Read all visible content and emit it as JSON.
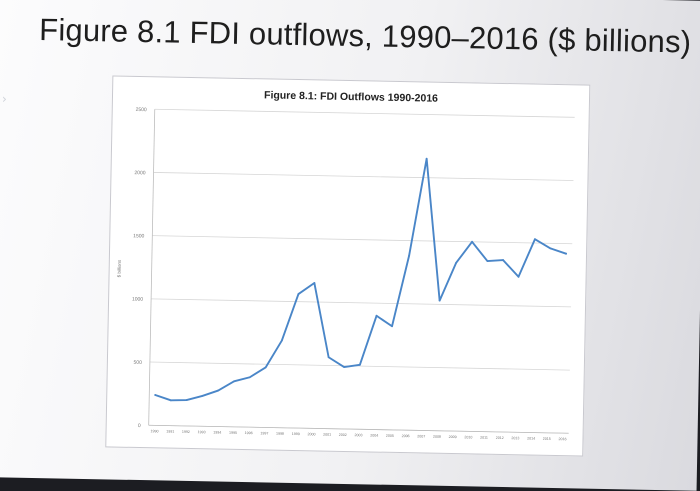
{
  "slide": {
    "title": "Figure 8.1 FDI outflows, 1990–2016 ($ billions)"
  },
  "chart_data": {
    "type": "line",
    "title": "Figure 8.1: FDI Outflows 1990-2016",
    "xlabel": "",
    "ylabel": "$ billions",
    "ylim": [
      0,
      2500
    ],
    "yticks": [
      0,
      500,
      1000,
      1500,
      2000,
      2500
    ],
    "grid": "horizontal",
    "legend": "none",
    "line_color": "#4a86c8",
    "x": [
      "1990",
      "1991",
      "1992",
      "1993",
      "1994",
      "1995",
      "1996",
      "1997",
      "1998",
      "1999",
      "2000",
      "2001",
      "2002",
      "2003",
      "2004",
      "2005",
      "2006",
      "2007",
      "2008",
      "2009",
      "2010",
      "2011",
      "2012",
      "2013",
      "2014",
      "2015",
      "2016"
    ],
    "series": [
      {
        "values": [
          240,
          200,
          205,
          240,
          285,
          360,
          395,
          475,
          690,
          1060,
          1150,
          565,
          490,
          510,
          900,
          820,
          1380,
          2150,
          1030,
          1330,
          1500,
          1350,
          1360,
          1230,
          1530,
          1460,
          1420
        ]
      }
    ]
  }
}
